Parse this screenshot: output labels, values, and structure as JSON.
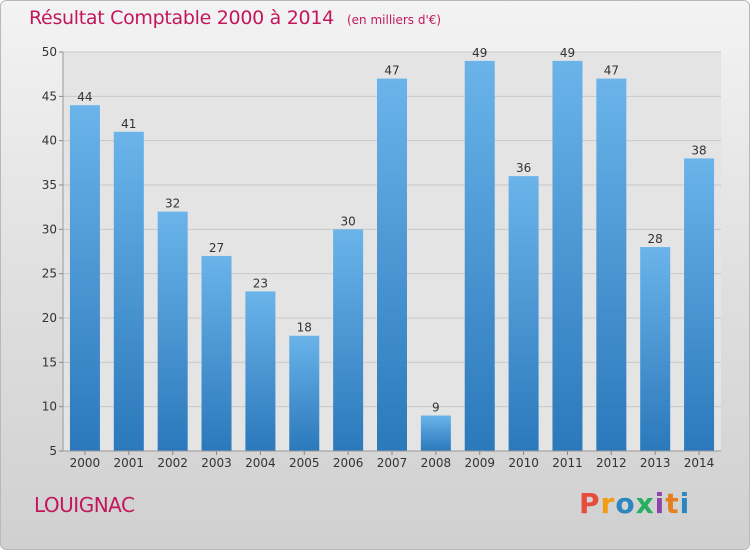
{
  "header": {
    "title": "Résultat Comptable 2000 à 2014",
    "unit": "(en milliers d'€)"
  },
  "footer": {
    "town": "LOUIGNAC",
    "logo": [
      "P",
      "r",
      "o",
      "x",
      "i",
      "t",
      "i"
    ]
  },
  "colors": {
    "title": "#c2185b",
    "bar_top": "#6ab4ea",
    "bar_bottom": "#2b78bb",
    "logo": [
      "#e74c3c",
      "#f39c12",
      "#2e86c1",
      "#27ae60",
      "#8e44ad",
      "#e67e22",
      "#2e86c1"
    ]
  },
  "chart_data": {
    "type": "bar",
    "title": "Résultat Comptable 2000 à 2014",
    "subtitle": "(en milliers d'€)",
    "xlabel": "",
    "ylabel": "",
    "categories": [
      "2000",
      "2001",
      "2002",
      "2003",
      "2004",
      "2005",
      "2006",
      "2007",
      "2008",
      "2009",
      "2010",
      "2011",
      "2012",
      "2013",
      "2014"
    ],
    "values": [
      44,
      41,
      32,
      27,
      23,
      18,
      30,
      47,
      9,
      49,
      36,
      49,
      47,
      28,
      38
    ],
    "ylim": [
      5,
      50
    ],
    "yticks": [
      5,
      10,
      15,
      20,
      25,
      30,
      35,
      40,
      45,
      50
    ],
    "grid": true,
    "legend": "none"
  }
}
